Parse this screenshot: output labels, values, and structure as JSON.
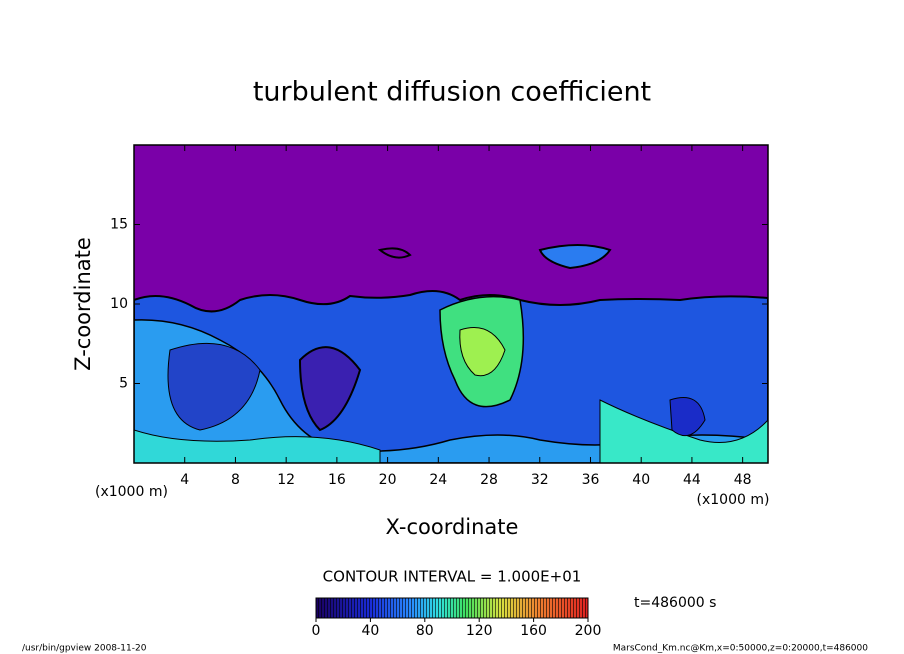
{
  "chart_data": {
    "type": "contour",
    "title": "turbulent diffusion coefficient",
    "xlabel": "X-coordinate",
    "ylabel": "Z-coordinate",
    "axis_unit": "(x1000 m)",
    "xlim": [
      0,
      50
    ],
    "xticks": [
      4,
      8,
      12,
      16,
      20,
      24,
      28,
      32,
      36,
      40,
      44,
      48
    ],
    "ylim": [
      0,
      20
    ],
    "yticks": [
      5,
      10,
      15
    ],
    "contour_interval": "CONTOUR INTERVAL = 1.000E+01",
    "colorbar": {
      "lim": [
        0,
        200
      ],
      "ticks": [
        0,
        40,
        80,
        120,
        160,
        200
      ]
    },
    "time_label": "t=486000 s",
    "footer_left": "/usr/bin/gpview   2008-11-20",
    "footer_right": "MarsCond_Km.nc@Km,x=0:50000,z=0:20000,t=486000"
  }
}
